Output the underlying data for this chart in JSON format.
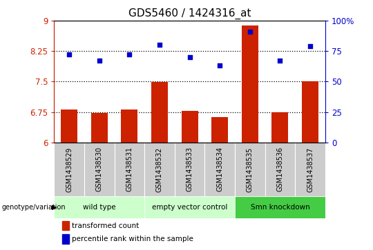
{
  "title": "GDS5460 / 1424316_at",
  "samples": [
    "GSM1438529",
    "GSM1438530",
    "GSM1438531",
    "GSM1438532",
    "GSM1438533",
    "GSM1438534",
    "GSM1438535",
    "GSM1438536",
    "GSM1438537"
  ],
  "transformed_count": [
    6.82,
    6.72,
    6.82,
    7.49,
    6.77,
    6.63,
    8.87,
    6.75,
    7.5
  ],
  "percentile_rank": [
    72,
    67,
    72,
    80,
    70,
    63,
    91,
    67,
    79
  ],
  "bar_color": "#cc2200",
  "dot_color": "#0000cc",
  "ylim_left": [
    6,
    9
  ],
  "ylim_right": [
    0,
    100
  ],
  "yticks_left": [
    6,
    6.75,
    7.5,
    8.25,
    9
  ],
  "yticks_right": [
    0,
    25,
    50,
    75,
    100
  ],
  "ytick_labels_right": [
    "0",
    "25",
    "50",
    "75",
    "100%"
  ],
  "hlines": [
    6.75,
    7.5,
    8.25
  ],
  "groups": [
    {
      "label": "wild type",
      "start": 0,
      "end": 2,
      "color": "#ccffcc"
    },
    {
      "label": "empty vector control",
      "start": 3,
      "end": 5,
      "color": "#ccffcc"
    },
    {
      "label": "Smn knockdown",
      "start": 6,
      "end": 8,
      "color": "#44cc44"
    }
  ],
  "group_row_label": "genotype/variation",
  "legend_bar_label": "transformed count",
  "legend_dot_label": "percentile rank within the sample",
  "title_fontsize": 11,
  "axis_label_color_left": "#cc2200",
  "axis_label_color_right": "#0000cc",
  "sample_cell_color": "#cccccc",
  "tick_label_fontsize": 7,
  "group_label_fontsize": 7.5,
  "legend_fontsize": 7.5
}
